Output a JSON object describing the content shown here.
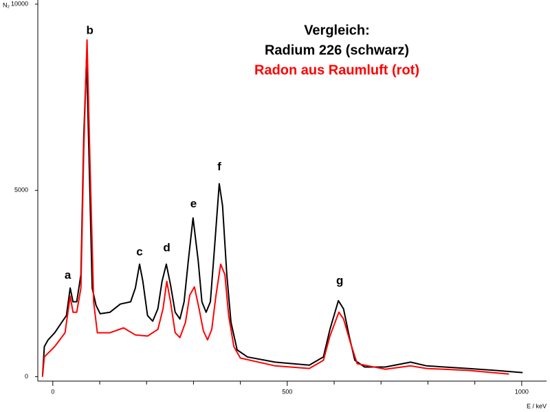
{
  "chart_data": {
    "type": "line",
    "title_lines": [
      "Vergleich:",
      "Radium 226 (schwarz)",
      "Radon aus Raumluft (rot)"
    ],
    "title_colors": [
      "#000000",
      "#000000",
      "#ff0000"
    ],
    "y_label": "N₂",
    "x_label": "E / keV",
    "xlim": [
      -32,
      1053
    ],
    "ylim": [
      -100,
      10000
    ],
    "xticks": [
      0,
      500,
      1000
    ],
    "xminorticks": [
      100,
      200,
      300,
      400,
      600,
      700,
      800,
      900
    ],
    "yticks": [
      0,
      5000,
      10000
    ],
    "series": [
      {
        "name": "Radium 226",
        "color": "#000000",
        "x": [
          -22,
          -18,
          -10,
          4,
          19,
          29,
          37,
          43,
          51,
          60,
          66,
          72,
          78,
          84,
          92,
          101,
          122,
          144,
          166,
          176,
          185,
          192,
          202,
          213,
          224,
          233,
          242,
          251,
          261,
          271,
          280,
          289,
          299,
          310,
          318,
          327,
          336,
          345,
          355,
          362,
          371,
          380,
          393,
          415,
          474,
          547,
          577,
          591,
          609,
          620,
          632,
          644,
          665,
          709,
          763,
          797,
          885,
          943,
          1002
        ],
        "values": [
          0,
          810,
          990,
          1180,
          1460,
          1640,
          2380,
          2010,
          2010,
          2740,
          6430,
          8550,
          5510,
          2380,
          1920,
          1690,
          1730,
          1950,
          2010,
          2380,
          3020,
          2560,
          1640,
          1490,
          1820,
          2560,
          3020,
          2470,
          1730,
          1550,
          2010,
          3110,
          4260,
          3110,
          2010,
          1730,
          2010,
          3480,
          5180,
          4590,
          2740,
          1460,
          720,
          530,
          390,
          310,
          530,
          1270,
          2040,
          1820,
          1090,
          440,
          260,
          260,
          390,
          290,
          220,
          170,
          110
        ]
      },
      {
        "name": "Radon aus Raumluft",
        "color": "#ff0000",
        "x": [
          -22,
          -18,
          4,
          26,
          37,
          43,
          51,
          60,
          66,
          73,
          79,
          87,
          95,
          122,
          151,
          176,
          202,
          224,
          235,
          243,
          251,
          261,
          271,
          283,
          292,
          302,
          312,
          321,
          330,
          339,
          348,
          358,
          367,
          375,
          386,
          400,
          474,
          547,
          577,
          591,
          610,
          620,
          635,
          649,
          709,
          763,
          797,
          885,
          973
        ],
        "values": [
          0,
          530,
          810,
          1180,
          2160,
          1730,
          1730,
          2380,
          6060,
          9040,
          5880,
          2010,
          1180,
          1180,
          1310,
          1120,
          1090,
          1270,
          1820,
          2560,
          2010,
          1180,
          1050,
          1460,
          2190,
          2410,
          1820,
          1230,
          990,
          1270,
          2190,
          3020,
          2740,
          1640,
          810,
          500,
          290,
          220,
          440,
          1090,
          1730,
          1550,
          900,
          350,
          200,
          290,
          220,
          170,
          70
        ]
      }
    ],
    "annotations": [
      {
        "text": "a",
        "x": 32,
        "y": 2710
      },
      {
        "text": "b",
        "x": 79,
        "y": 9280
      },
      {
        "text": "c",
        "x": 185,
        "y": 3340
      },
      {
        "text": "d",
        "x": 243,
        "y": 3450
      },
      {
        "text": "e",
        "x": 300,
        "y": 4630
      },
      {
        "text": "f",
        "x": 355,
        "y": 5620
      },
      {
        "text": "g",
        "x": 612,
        "y": 2560
      }
    ]
  }
}
